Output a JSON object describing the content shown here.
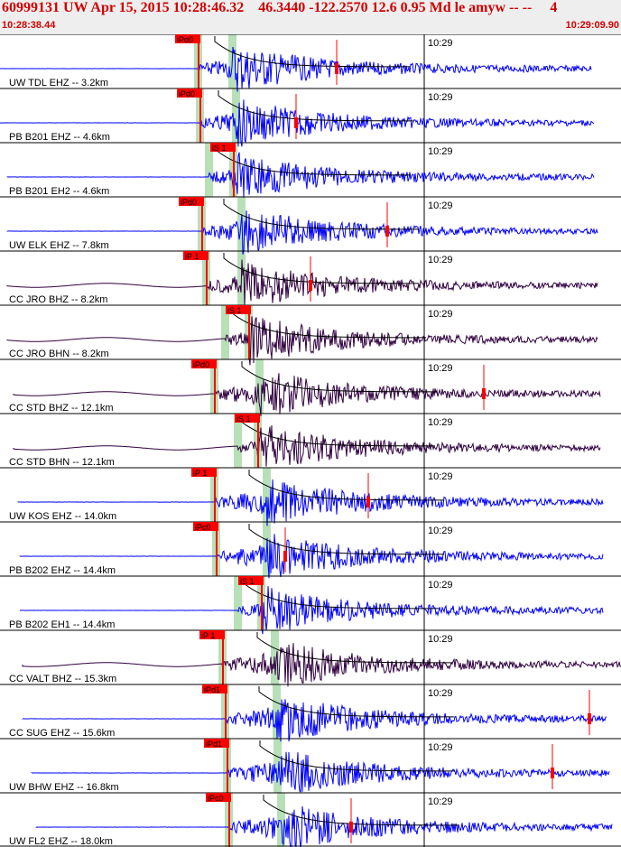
{
  "header": {
    "title": "60999131 UW Apr 15, 2015 10:28:46.32    46.3440 -122.2570 12.6 0.95 Md le amyw -- --     4",
    "time_start": "10:28:38.44",
    "time_end": "10:29:09.90"
  },
  "colors": {
    "header_text": "#d00000",
    "vertical_trace": "#0000ff",
    "horizontal_trace": "#300040",
    "pick": "#ff0000",
    "phase_window": "#b8e0b8",
    "decay_curve": "#000000"
  },
  "chart_data": {
    "type": "seismogram",
    "time_range": [
      "10:28:38.44",
      "10:29:09.90"
    ],
    "time_tick": "10:29",
    "traces": [
      {
        "label": "UW TDL EHZ -- 3.2km",
        "pick": "iPd0",
        "color": "blue",
        "coda_mark": true
      },
      {
        "label": "PB B201 EHZ -- 4.6km",
        "pick": "iPd0",
        "color": "blue",
        "coda_mark": true
      },
      {
        "label": "PB B201 EH2 -- 4.6km",
        "pick": "iS 1",
        "color": "blue",
        "coda_mark": false
      },
      {
        "label": "UW ELK EHZ -- 7.8km",
        "pick": "iPd0",
        "color": "blue",
        "coda_mark": true
      },
      {
        "label": "CC JRO BHZ -- 8.2km",
        "pick": "iP 1",
        "color": "dark",
        "coda_mark": true
      },
      {
        "label": "CC JRO BHN -- 8.2km",
        "pick": "iS 1",
        "color": "dark",
        "coda_mark": false
      },
      {
        "label": "CC STD BHZ -- 12.1km",
        "pick": "iPd0",
        "color": "dark",
        "coda_mark": true
      },
      {
        "label": "CC STD BHN -- 12.1km",
        "pick": "iS 1",
        "color": "dark",
        "coda_mark": false
      },
      {
        "label": "UW KOS EHZ -- 14.0km",
        "pick": "iP 1",
        "color": "blue",
        "coda_mark": true
      },
      {
        "label": "PB B202 EHZ -- 14.4km",
        "pick": "iPc0",
        "color": "blue",
        "coda_mark": true
      },
      {
        "label": "PB B202 EH1 -- 14.4km",
        "pick": "iS 1",
        "color": "blue",
        "coda_mark": false
      },
      {
        "label": "CC VALT BHZ -- 15.3km",
        "pick": "iP 1",
        "color": "dark",
        "coda_mark": false
      },
      {
        "label": "CC SUG EHZ -- 15.6km",
        "pick": "iPd1",
        "color": "blue",
        "coda_mark": true
      },
      {
        "label": "UW BHW EHZ -- 16.8km",
        "pick": "iPd1",
        "color": "blue",
        "coda_mark": true
      },
      {
        "label": "UW FL2 EHZ -- 18.0km",
        "pick": "iPc0",
        "color": "blue",
        "coda_mark": true
      }
    ]
  }
}
